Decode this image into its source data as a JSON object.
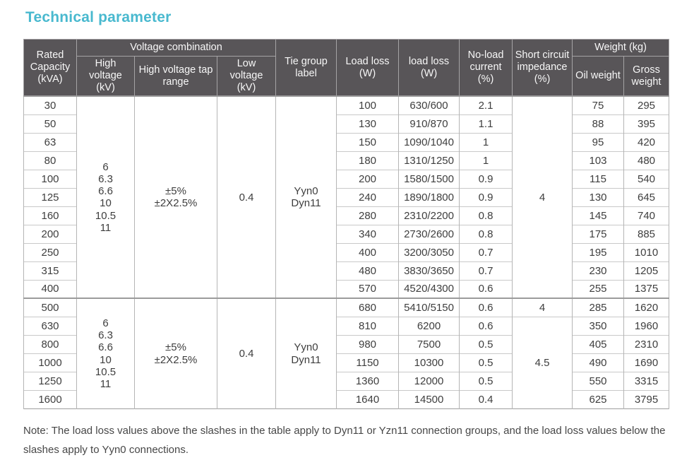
{
  "page": {
    "title": "Technical parameter",
    "title_color": "#49b9cf",
    "note": "Note: The load loss values above the slashes in the table apply to Dyn11 or Yzn11 connection groups, and the load loss values below the slashes apply to Yyn0 connections."
  },
  "table": {
    "header": {
      "rated_capacity": "Rated Capacity (kVA)",
      "voltage_combination": "Voltage combination",
      "high_voltage": "High voltage (kV)",
      "hv_tap_range": "High voltage tap range",
      "low_voltage": "Low voltage (kV)",
      "tie_group": "Tie group label",
      "load_loss": "Load loss (W)",
      "load_loss2": "load loss (W)",
      "no_load_current": "No-load current (%)",
      "short_circuit": "Short circuit impedance (%)",
      "weight": "Weight (kg)",
      "oil_weight": "Oil weight",
      "gross_weight": "Gross weight"
    },
    "groups": [
      {
        "high_voltage": "6\n6.3\n6.6\n10\n10.5\n11",
        "tap_range": "±5%\n±2X2.5%",
        "low_voltage": "0.4",
        "tie_group": "Yyn0\nDyn11",
        "impedance_spans": [
          {
            "rows": 11,
            "value": "4"
          }
        ],
        "rows": [
          {
            "capacity": "30",
            "load_loss": "100",
            "load_loss2": "630/600",
            "no_load": "2.1",
            "oil": "75",
            "gross": "295"
          },
          {
            "capacity": "50",
            "load_loss": "130",
            "load_loss2": "910/870",
            "no_load": "1.1",
            "oil": "88",
            "gross": "395"
          },
          {
            "capacity": "63",
            "load_loss": "150",
            "load_loss2": "1090/1040",
            "no_load": "1",
            "oil": "95",
            "gross": "420"
          },
          {
            "capacity": "80",
            "load_loss": "180",
            "load_loss2": "1310/1250",
            "no_load": "1",
            "oil": "103",
            "gross": "480"
          },
          {
            "capacity": "100",
            "load_loss": "200",
            "load_loss2": "1580/1500",
            "no_load": "0.9",
            "oil": "115",
            "gross": "540"
          },
          {
            "capacity": "125",
            "load_loss": "240",
            "load_loss2": "1890/1800",
            "no_load": "0.9",
            "oil": "130",
            "gross": "645"
          },
          {
            "capacity": "160",
            "load_loss": "280",
            "load_loss2": "2310/2200",
            "no_load": "0.8",
            "oil": "145",
            "gross": "740"
          },
          {
            "capacity": "200",
            "load_loss": "340",
            "load_loss2": "2730/2600",
            "no_load": "0.8",
            "oil": "175",
            "gross": "885"
          },
          {
            "capacity": "250",
            "load_loss": "400",
            "load_loss2": "3200/3050",
            "no_load": "0.7",
            "oil": "195",
            "gross": "1010"
          },
          {
            "capacity": "315",
            "load_loss": "480",
            "load_loss2": "3830/3650",
            "no_load": "0.7",
            "oil": "230",
            "gross": "1205"
          },
          {
            "capacity": "400",
            "load_loss": "570",
            "load_loss2": "4520/4300",
            "no_load": "0.6",
            "oil": "255",
            "gross": "1375"
          }
        ]
      },
      {
        "high_voltage": "6\n6.3\n6.6\n10\n10.5\n11",
        "tap_range": "±5%\n±2X2.5%",
        "low_voltage": "0.4",
        "tie_group": "Yyn0\nDyn11",
        "impedance_spans": [
          {
            "rows": 1,
            "value": "4"
          },
          {
            "rows": 5,
            "value": "4.5"
          }
        ],
        "rows": [
          {
            "capacity": "500",
            "load_loss": "680",
            "load_loss2": "5410/5150",
            "no_load": "0.6",
            "oil": "285",
            "gross": "1620"
          },
          {
            "capacity": "630",
            "load_loss": "810",
            "load_loss2": "6200",
            "no_load": "0.6",
            "oil": "350",
            "gross": "1960"
          },
          {
            "capacity": "800",
            "load_loss": "980",
            "load_loss2": "7500",
            "no_load": "0.5",
            "oil": "405",
            "gross": "2310"
          },
          {
            "capacity": "1000",
            "load_loss": "1150",
            "load_loss2": "10300",
            "no_load": "0.5",
            "oil": "490",
            "gross": "1690"
          },
          {
            "capacity": "1250",
            "load_loss": "1360",
            "load_loss2": "12000",
            "no_load": "0.5",
            "oil": "550",
            "gross": "3315"
          },
          {
            "capacity": "1600",
            "load_loss": "1640",
            "load_loss2": "14500",
            "no_load": "0.4",
            "oil": "625",
            "gross": "3795"
          }
        ]
      }
    ]
  }
}
